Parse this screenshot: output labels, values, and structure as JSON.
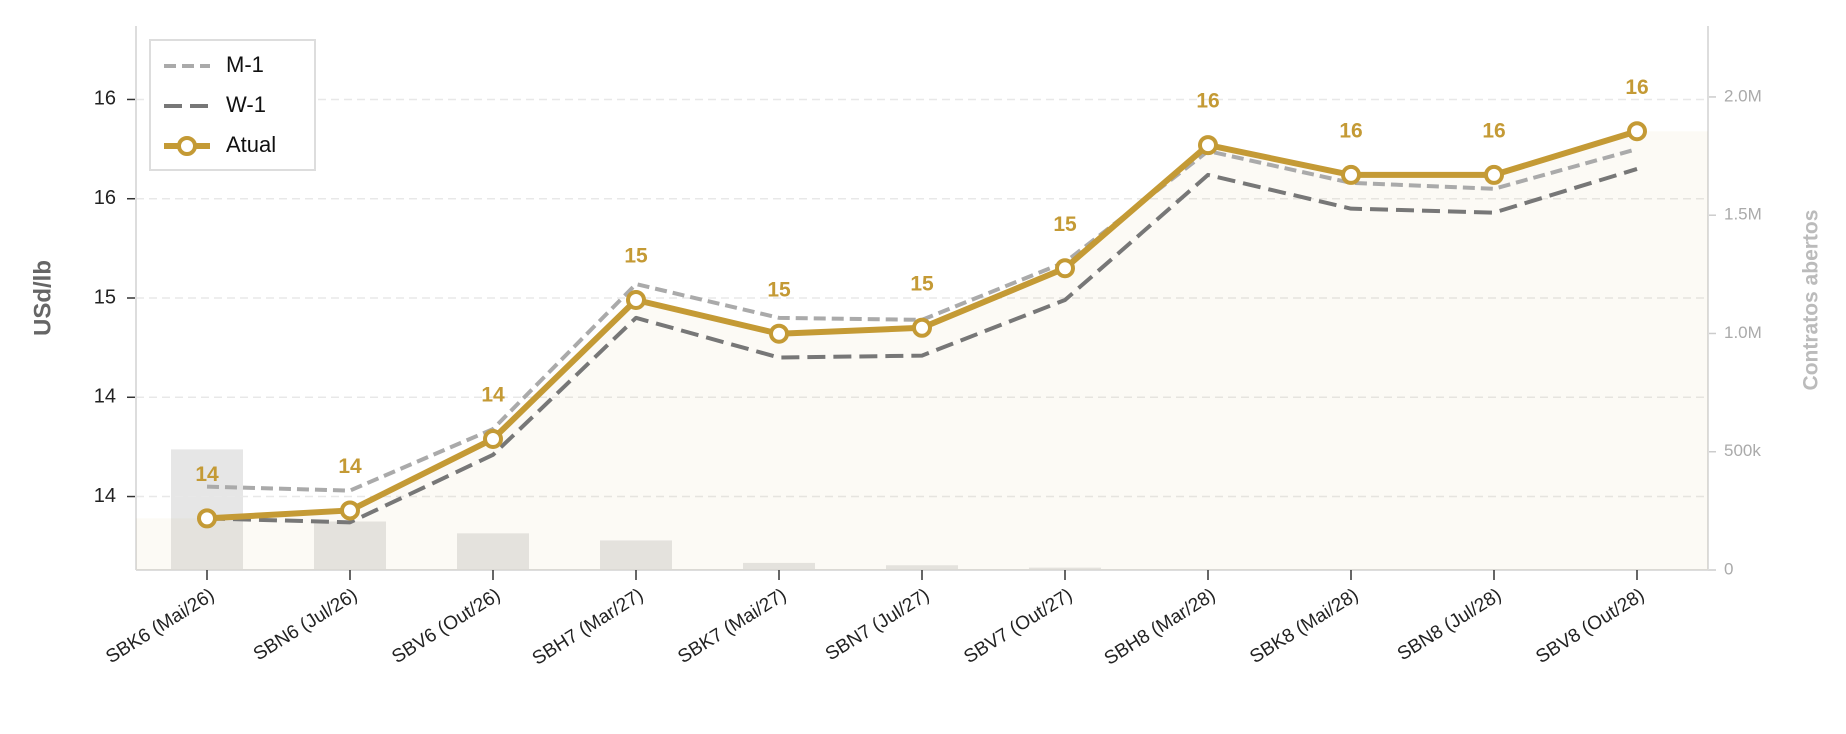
{
  "chart_data": {
    "type": "line",
    "categories": [
      "SBK6 (Mai/26)",
      "SBN6 (Jul/26)",
      "SBV6 (Out/26)",
      "SBH7 (Mar/27)",
      "SBK7 (Mai/27)",
      "SBN7 (Jul/27)",
      "SBV7 (Out/27)",
      "SBH8 (Mar/28)",
      "SBK8 (Mai/28)",
      "SBN8 (Jul/28)",
      "SBV8 (Out/28)"
    ],
    "series": [
      {
        "name": "M-1",
        "color": "#aaaaaa",
        "dash": true,
        "values": [
          14.05,
          14.03,
          14.34,
          15.07,
          14.9,
          14.89,
          15.18,
          15.74,
          15.58,
          15.55,
          15.75
        ]
      },
      {
        "name": "W-1",
        "color": "#777777",
        "dash": true,
        "values": [
          13.89,
          13.87,
          14.21,
          14.9,
          14.7,
          14.71,
          14.99,
          15.62,
          15.45,
          15.43,
          15.65
        ]
      },
      {
        "name": "Atual",
        "color": "#c49a35",
        "markers": true,
        "values": [
          13.89,
          13.93,
          14.29,
          14.99,
          14.82,
          14.85,
          15.15,
          15.77,
          15.62,
          15.62,
          15.84
        ],
        "value_labels": [
          "14",
          "14",
          "14",
          "15",
          "15",
          "15",
          "15",
          "16",
          "16",
          "16",
          "16"
        ]
      },
      {
        "name": "Contratos abertos",
        "type": "bar",
        "axis": "y2",
        "color": "#e6e6e6",
        "values": [
          510000,
          205000,
          155000,
          125000,
          30000,
          20000,
          10000,
          0,
          0,
          0,
          0
        ]
      }
    ],
    "ylabel": "USd/lb",
    "y2label": "Contratos abertos",
    "ylim": [
      13.63,
      16.37
    ],
    "yticks": [
      14,
      {
        "value": 14.5,
        "label": "14"
      },
      15,
      {
        "value": 15.5,
        "label": "16"
      },
      16
    ],
    "y2lim": [
      0,
      2300000
    ],
    "y2ticks": [
      0,
      {
        "value": 500000,
        "label": "500k"
      },
      {
        "value": 1000000,
        "label": "1.0M"
      },
      {
        "value": 1500000,
        "label": "1.5M"
      },
      {
        "value": 2000000,
        "label": "2.0M"
      }
    ],
    "grid": true,
    "legend": "upper left"
  }
}
